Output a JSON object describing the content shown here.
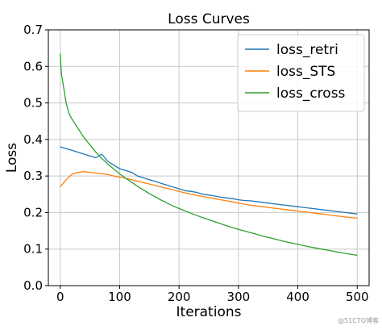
{
  "chart_data": {
    "type": "line",
    "title": "Loss Curves",
    "xlabel": "Iterations",
    "ylabel": "Loss",
    "xlim": [
      -20,
      520
    ],
    "ylim": [
      0.0,
      0.7
    ],
    "xticks": [
      0,
      100,
      200,
      300,
      400,
      500
    ],
    "yticks": [
      0.0,
      0.1,
      0.2,
      0.3,
      0.4,
      0.5,
      0.6,
      0.7
    ],
    "grid": true,
    "legend": "top-right",
    "series": [
      {
        "name": "loss_retri",
        "color": "#1f77b4",
        "x": [
          0,
          10,
          20,
          30,
          40,
          50,
          60,
          70,
          80,
          90,
          100,
          110,
          120,
          130,
          140,
          150,
          160,
          170,
          180,
          190,
          200,
          210,
          220,
          230,
          240,
          250,
          260,
          270,
          280,
          290,
          300,
          310,
          320,
          330,
          340,
          350,
          360,
          370,
          380,
          390,
          400,
          410,
          420,
          430,
          440,
          450,
          460,
          470,
          480,
          490,
          500
        ],
        "values": [
          0.38,
          0.375,
          0.37,
          0.365,
          0.36,
          0.355,
          0.35,
          0.36,
          0.34,
          0.33,
          0.32,
          0.315,
          0.31,
          0.3,
          0.295,
          0.29,
          0.285,
          0.28,
          0.275,
          0.27,
          0.265,
          0.26,
          0.258,
          0.255,
          0.25,
          0.248,
          0.245,
          0.242,
          0.24,
          0.238,
          0.235,
          0.233,
          0.232,
          0.23,
          0.228,
          0.226,
          0.224,
          0.222,
          0.22,
          0.218,
          0.216,
          0.214,
          0.212,
          0.21,
          0.208,
          0.206,
          0.204,
          0.202,
          0.2,
          0.198,
          0.196
        ]
      },
      {
        "name": "loss_STS",
        "color": "#ff7f0e",
        "x": [
          0,
          10,
          20,
          30,
          40,
          50,
          60,
          70,
          80,
          90,
          100,
          110,
          120,
          130,
          140,
          150,
          160,
          170,
          180,
          190,
          200,
          210,
          220,
          230,
          240,
          250,
          260,
          270,
          280,
          290,
          300,
          310,
          320,
          330,
          340,
          350,
          360,
          370,
          380,
          390,
          400,
          410,
          420,
          430,
          440,
          450,
          460,
          470,
          480,
          490,
          500
        ],
        "values": [
          0.27,
          0.29,
          0.305,
          0.31,
          0.312,
          0.31,
          0.308,
          0.306,
          0.304,
          0.3,
          0.297,
          0.294,
          0.29,
          0.286,
          0.282,
          0.278,
          0.274,
          0.27,
          0.266,
          0.262,
          0.258,
          0.254,
          0.25,
          0.247,
          0.244,
          0.241,
          0.238,
          0.235,
          0.232,
          0.229,
          0.226,
          0.223,
          0.22,
          0.218,
          0.216,
          0.214,
          0.212,
          0.21,
          0.208,
          0.206,
          0.204,
          0.202,
          0.2,
          0.198,
          0.196,
          0.194,
          0.192,
          0.19,
          0.188,
          0.186,
          0.185
        ]
      },
      {
        "name": "loss_cross",
        "color": "#2ca02c",
        "x": [
          0,
          2,
          5,
          10,
          15,
          20,
          30,
          40,
          50,
          60,
          70,
          80,
          90,
          100,
          110,
          120,
          130,
          140,
          150,
          160,
          170,
          180,
          190,
          200,
          220,
          240,
          260,
          280,
          300,
          320,
          340,
          360,
          380,
          400,
          420,
          440,
          460,
          480,
          500
        ],
        "values": [
          0.635,
          0.58,
          0.55,
          0.5,
          0.47,
          0.455,
          0.43,
          0.405,
          0.385,
          0.365,
          0.348,
          0.333,
          0.319,
          0.306,
          0.294,
          0.283,
          0.272,
          0.262,
          0.252,
          0.243,
          0.234,
          0.226,
          0.218,
          0.211,
          0.198,
          0.186,
          0.175,
          0.164,
          0.154,
          0.145,
          0.136,
          0.128,
          0.12,
          0.113,
          0.106,
          0.1,
          0.094,
          0.088,
          0.083
        ]
      }
    ]
  },
  "watermark": "@51CTO博客"
}
